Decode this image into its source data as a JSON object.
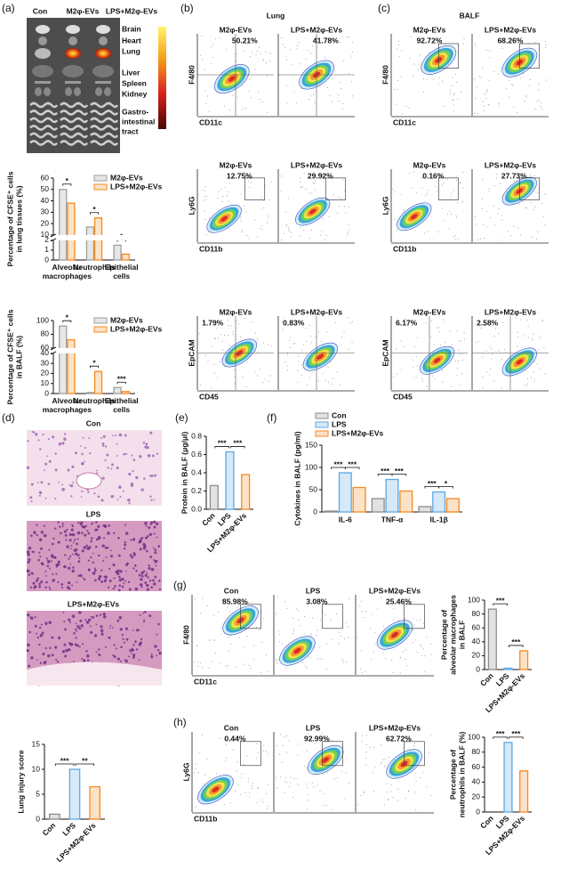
{
  "panel_labels": [
    "(a)",
    "(b)",
    "(c)",
    "(d)",
    "(e)",
    "(f)",
    "(g)",
    "(h)"
  ],
  "organ_image": {
    "columns": [
      "Con",
      "M2φ-EVs",
      "LPS+M2φ-EVs"
    ],
    "organs": [
      "Brain",
      "Heart",
      "Lung",
      "Liver",
      "Spleen",
      "Kidney"
    ],
    "gi": [
      "Gastro-",
      "intestinal",
      "tract"
    ]
  },
  "histology": {
    "groups": [
      "Con",
      "LPS",
      "LPS+M2φ-EVs"
    ]
  },
  "flow_data": {
    "b": {
      "title": "Lung",
      "rows": [
        {
          "ylabel": "F4/80",
          "xlabel": "CD11c",
          "plots": [
            {
              "name": "M2φ-EVs",
              "percent": "50.21%"
            },
            {
              "name": "LPS+M2φ-EVs",
              "percent": "41.78%"
            }
          ]
        },
        {
          "ylabel": "Ly6G",
          "xlabel": "CD11b",
          "plots": [
            {
              "name": "M2φ-EVs",
              "percent": "12.75%"
            },
            {
              "name": "LPS+M2φ-EVs",
              "percent": "29.92%"
            }
          ]
        },
        {
          "ylabel": "EpCAM",
          "xlabel": "CD45",
          "plots": [
            {
              "name": "M2φ-EVs",
              "percent": "1.79%"
            },
            {
              "name": "LPS+M2φ-EVs",
              "percent": "0.83%"
            }
          ]
        }
      ]
    },
    "c": {
      "title": "BALF",
      "rows": [
        {
          "ylabel": "F4/80",
          "xlabel": "CD11c",
          "plots": [
            {
              "name": "M2φ-EVs",
              "percent": "92.72%"
            },
            {
              "name": "LPS+M2φ-EVs",
              "percent": "68.26%"
            }
          ]
        },
        {
          "ylabel": "Ly6G",
          "xlabel": "CD11b",
          "plots": [
            {
              "name": "M2φ-EVs",
              "percent": "0.16%"
            },
            {
              "name": "LPS+M2φ-EVs",
              "percent": "27.73%"
            }
          ]
        },
        {
          "ylabel": "EpCAM",
          "xlabel": "CD45",
          "plots": [
            {
              "name": "M2φ-EVs",
              "percent": "6.17%"
            },
            {
              "name": "LPS+M2φ-EVs",
              "percent": "2.58%"
            }
          ]
        }
      ]
    },
    "g": {
      "rows": [
        {
          "ylabel": "F4/80",
          "xlabel": "CD11c",
          "plots": [
            {
              "name": "Con",
              "percent": "85.98%"
            },
            {
              "name": "LPS",
              "percent": "3.08%"
            },
            {
              "name": "LPS+M2φ-EVs",
              "percent": "25.46%"
            }
          ]
        }
      ]
    },
    "h": {
      "rows": [
        {
          "ylabel": "Ly6G",
          "xlabel": "CD11b",
          "plots": [
            {
              "name": "Con",
              "percent": "0.44%"
            },
            {
              "name": "LPS",
              "percent": "92.99%"
            },
            {
              "name": "LPS+M2φ-EVs",
              "percent": "62.72%"
            }
          ]
        }
      ]
    }
  },
  "chart_data": [
    {
      "type": "bar",
      "ylabel": [
        "Percentage of CFSE⁺ cells",
        "in lung tissues (%)"
      ],
      "categories": [
        "Alveolar macrophages",
        "Neutrophils",
        "Epithelial cells"
      ],
      "series": [
        {
          "name": "M2φ-EVs",
          "color": "#9e9e9e",
          "values": [
            50,
            17,
            1.5
          ]
        },
        {
          "name": "LPS+M2φ-EVs",
          "color": "#f58a1f",
          "values": [
            38,
            25,
            0.6
          ]
        }
      ],
      "ylim": [
        0,
        60
      ],
      "ybreak": [
        2,
        10
      ],
      "yticks": [
        0,
        1,
        2,
        10,
        20,
        30,
        40,
        50,
        60
      ],
      "significance": [
        [
          "*"
        ],
        [
          "*"
        ],
        [
          "*"
        ]
      ]
    },
    {
      "type": "bar",
      "ylabel": [
        "Percentage of CFSE⁺ cells",
        "in BALF (%)"
      ],
      "categories": [
        "Alveolar macrophages",
        "Neutrophils",
        "Epithelial cells"
      ],
      "series": [
        {
          "name": "M2φ-EVs",
          "color": "#9e9e9e",
          "values": [
            92,
            1,
            6
          ]
        },
        {
          "name": "LPS+M2φ-EVs",
          "color": "#f58a1f",
          "values": [
            72,
            22,
            2
          ]
        }
      ],
      "ylim": [
        0,
        100
      ],
      "ybreak": [
        40,
        60
      ],
      "yticks": [
        0,
        10,
        20,
        30,
        40,
        60,
        80,
        100
      ],
      "significance": [
        [
          "*"
        ],
        [
          "*"
        ],
        [
          "***"
        ]
      ]
    },
    {
      "type": "bar",
      "ylabel": [
        "Lung injury score"
      ],
      "categories": [
        "Con",
        "LPS",
        "LPS+M2φ-EVs"
      ],
      "values": [
        1,
        10,
        6.5
      ],
      "colors": [
        "#8c8c8c",
        "#5aa9e6",
        "#f58a1f"
      ],
      "ylim": [
        0,
        15
      ],
      "yticks": [
        0,
        5,
        10,
        15
      ],
      "significance": [
        "***",
        "**"
      ]
    },
    {
      "type": "bar",
      "ylabel": [
        "Protein in BALF (μg/μl)"
      ],
      "categories": [
        "Con",
        "LPS",
        "LPS+M2φ-EVs"
      ],
      "values": [
        0.26,
        0.63,
        0.38
      ],
      "colors": [
        "#8c8c8c",
        "#5aa9e6",
        "#f58a1f"
      ],
      "ylim": [
        0,
        0.8
      ],
      "yticks": [
        {
          "value": 0,
          "label": "0.0"
        },
        0.2,
        0.4,
        0.6,
        0.8
      ],
      "significance": [
        "***",
        "***"
      ]
    },
    {
      "type": "bar",
      "ylabel": [
        "Cytokines in  BALF (pg/ml)"
      ],
      "categories": [
        "IL-6",
        "TNF-α",
        "IL-1β"
      ],
      "series": [
        {
          "name": "Con",
          "color": "#8c8c8c",
          "values": [
            2,
            30,
            12
          ]
        },
        {
          "name": "LPS",
          "color": "#5aa9e6",
          "values": [
            88,
            73,
            45
          ]
        },
        {
          "name": "LPS+M2φ-EVs",
          "color": "#f58a1f",
          "values": [
            55,
            47,
            30
          ]
        }
      ],
      "ylim": [
        0,
        150
      ],
      "yticks": [
        0,
        50,
        100,
        150
      ],
      "significance": [
        [
          "***",
          "***"
        ],
        [
          "***",
          "***"
        ],
        [
          "***",
          "*"
        ]
      ]
    },
    {
      "type": "bar",
      "ylabel": [
        "Percentage of",
        "alveolar macrophages",
        "in BALF"
      ],
      "categories": [
        "Con",
        "LPS",
        "LPS+M2φ-EVs"
      ],
      "values": [
        87,
        2,
        27
      ],
      "colors": [
        "#8c8c8c",
        "#5aa9e6",
        "#f58a1f"
      ],
      "ylim": [
        0,
        100
      ],
      "yticks": [
        0,
        20,
        40,
        60,
        80,
        100
      ],
      "significance": [
        "***",
        "***"
      ]
    },
    {
      "type": "bar",
      "ylabel": [
        "Percentage of",
        "neutrophils in BALF (%)"
      ],
      "categories": [
        "Con",
        "LPS",
        "LPS+M2φ-EVs"
      ],
      "values": [
        0,
        93,
        55
      ],
      "colors": [
        "#8c8c8c",
        "#5aa9e6",
        "#f58a1f"
      ],
      "ylim": [
        0,
        100
      ],
      "yticks": [
        0,
        20,
        40,
        60,
        80,
        100
      ],
      "significance": [
        "***",
        "***"
      ]
    }
  ]
}
